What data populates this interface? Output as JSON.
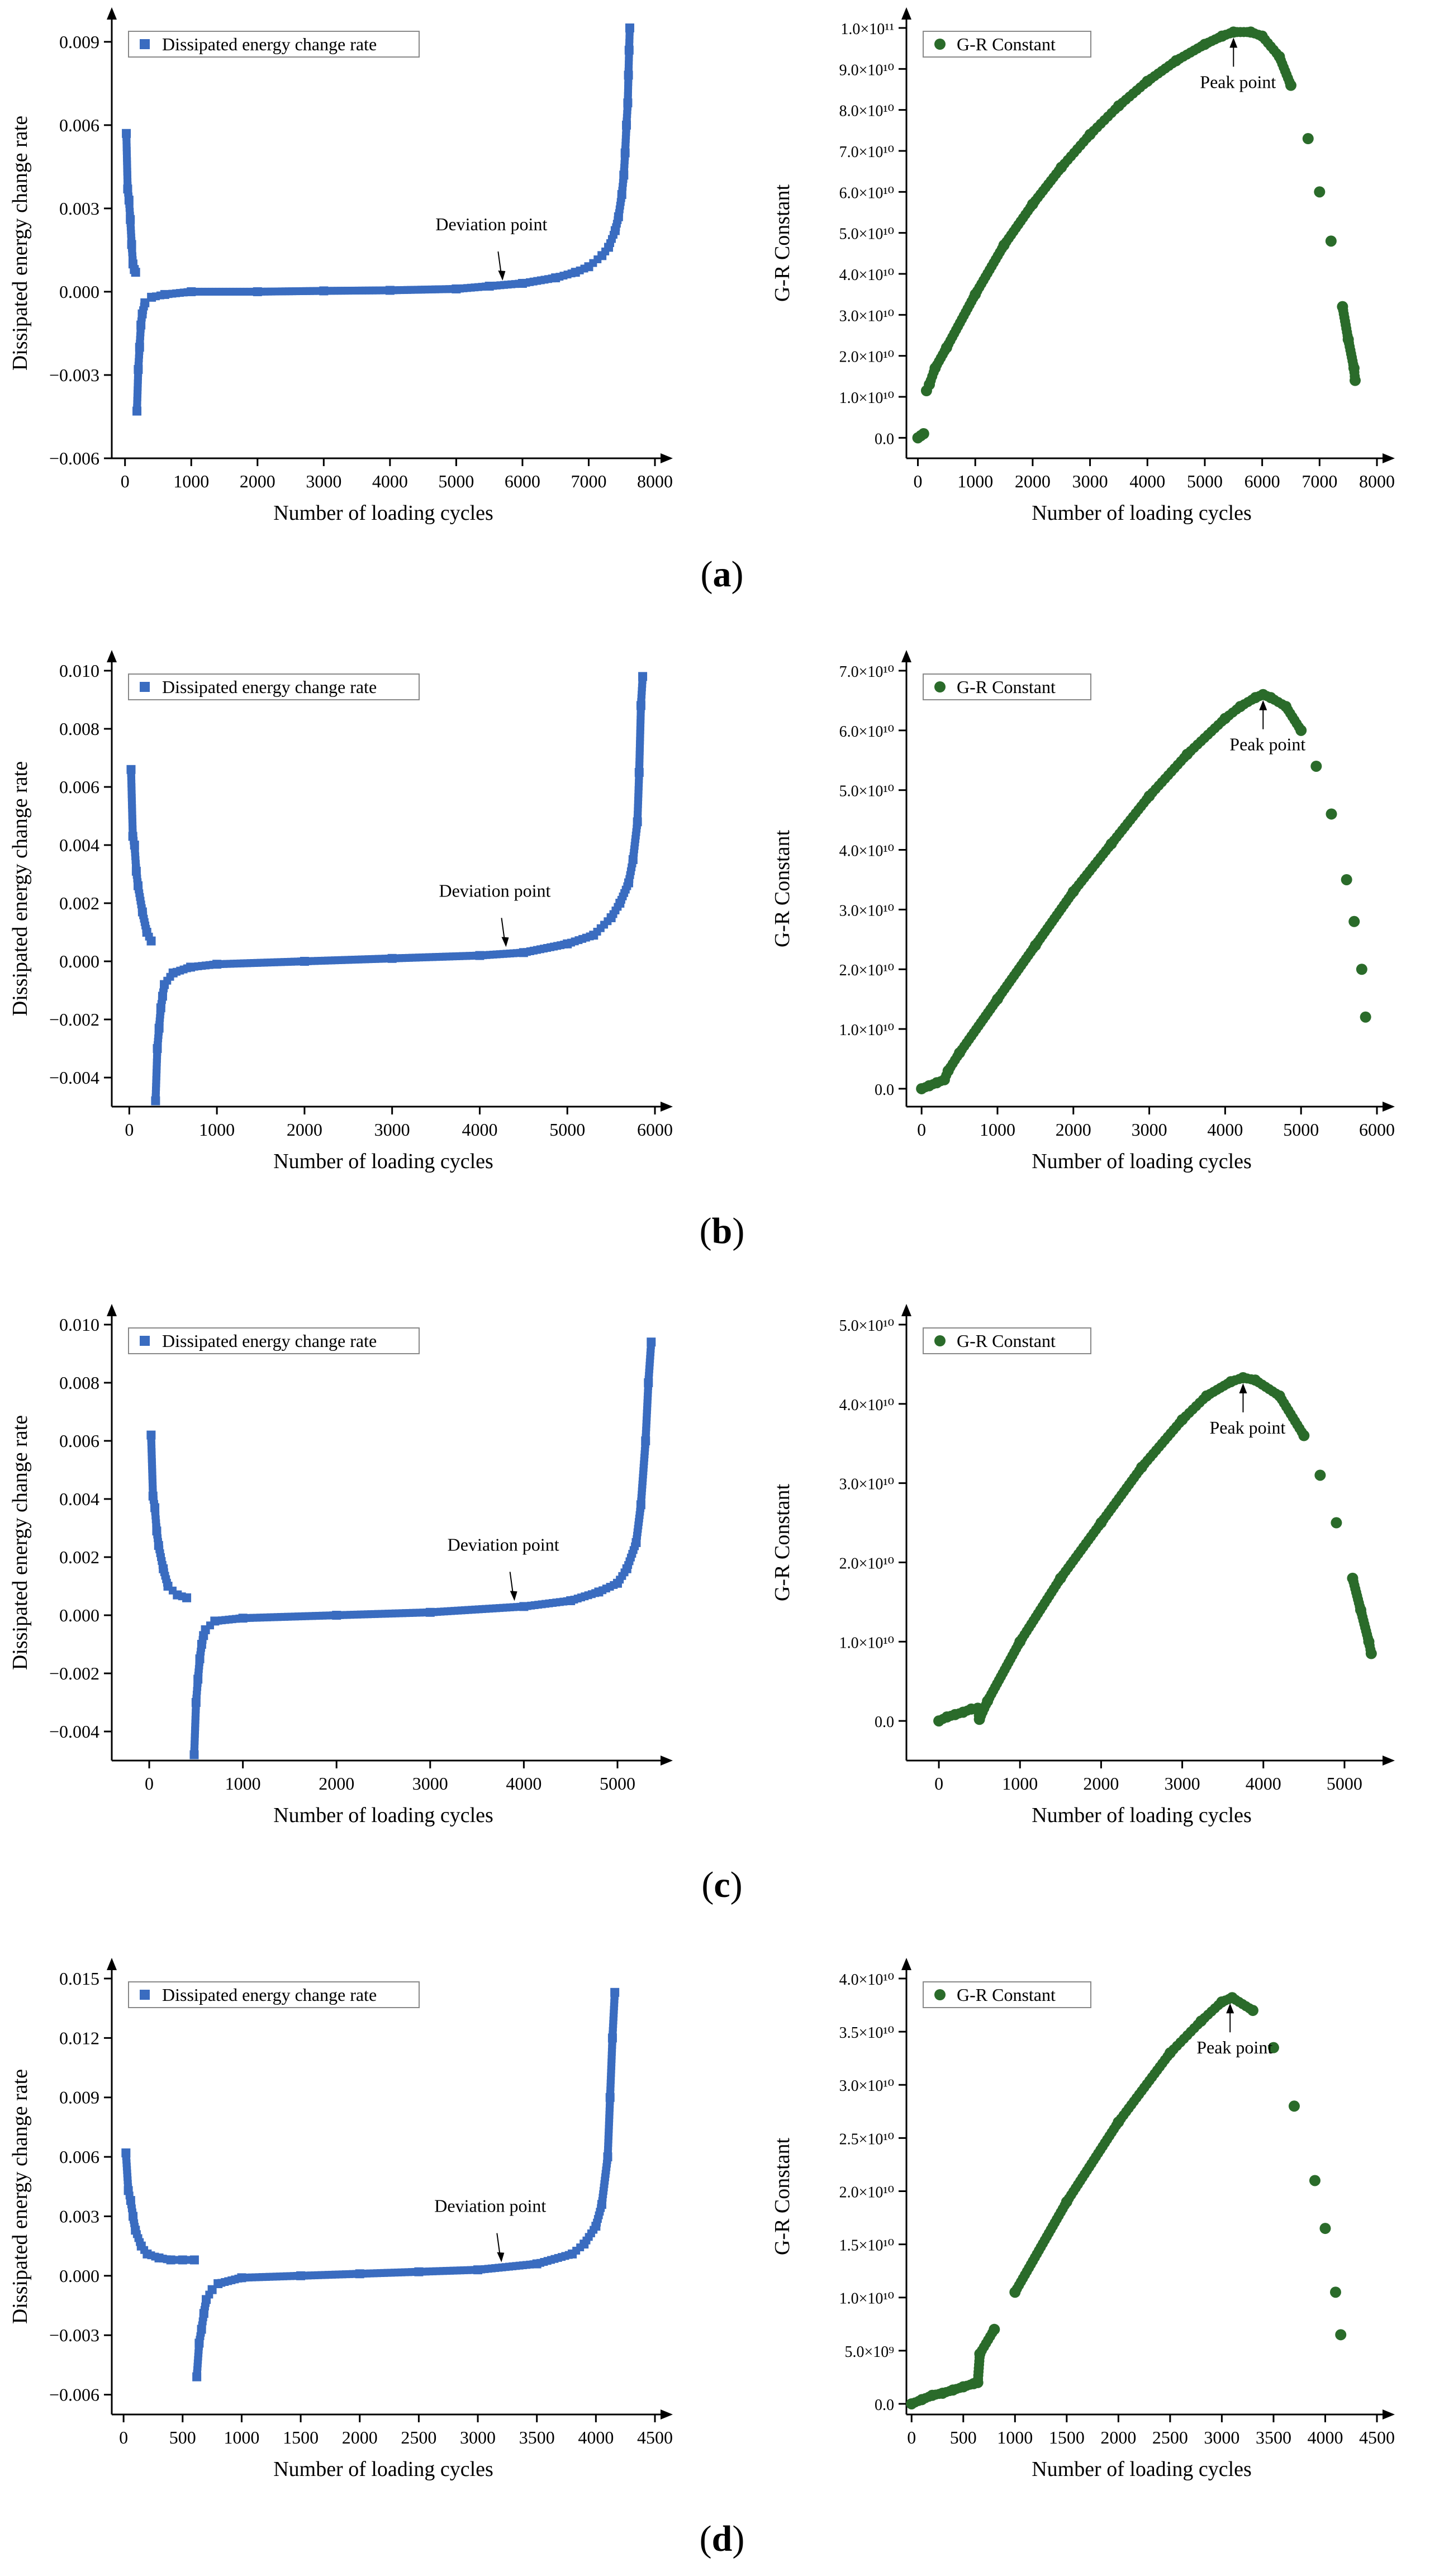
{
  "charts": [
    {
      "id": "a-left",
      "type": "scatter",
      "marker": "square",
      "color": "#3a6cc0",
      "legend": "Dissipated energy change rate",
      "xlabel": "Number of loading cycles",
      "ylabel": "Dissipated energy change rate",
      "xlim": [
        -200,
        8000
      ],
      "xticks": [
        0,
        1000,
        2000,
        3000,
        4000,
        5000,
        6000,
        7000,
        8000
      ],
      "xtick_labels": [
        "0",
        "1000",
        "2000",
        "3000",
        "4000",
        "5000",
        "6000",
        "7000",
        "8000"
      ],
      "ylim": [
        -0.006,
        0.0095
      ],
      "yticks": [
        -0.006,
        -0.003,
        0,
        0.003,
        0.006,
        0.009
      ],
      "ytick_labels": [
        "−0.006",
        "−0.003",
        "0.000",
        "0.003",
        "0.006",
        "0.009"
      ],
      "annotation": {
        "text": "Deviation point",
        "x": 5700,
        "y": 0.0002
      }
    },
    {
      "id": "a-right",
      "type": "scatter",
      "marker": "circle",
      "color": "#2a6b2a",
      "legend": "G-R Constant",
      "xlabel": "Number of loading cycles",
      "ylabel": "G-R Constant",
      "xlim": [
        -200,
        8000
      ],
      "xticks": [
        0,
        1000,
        2000,
        3000,
        4000,
        5000,
        6000,
        7000,
        8000
      ],
      "xtick_labels": [
        "0",
        "1000",
        "2000",
        "3000",
        "4000",
        "5000",
        "6000",
        "7000",
        "8000"
      ],
      "ylim": [
        -0.05,
        1.0
      ],
      "yticks": [
        0,
        0.1,
        0.2,
        0.3,
        0.4,
        0.5,
        0.6,
        0.7,
        0.8,
        0.9,
        1.0
      ],
      "ytick_labels": [
        "0.0",
        "1.0×10¹⁰",
        "2.0×10¹⁰",
        "3.0×10¹⁰",
        "4.0×10¹⁰",
        "5.0×10¹⁰",
        "6.0×10¹⁰",
        "7.0×10¹⁰",
        "8.0×10¹⁰",
        "9.0×10¹⁰",
        "1.0×10¹¹"
      ],
      "annotation": {
        "text": "Peak point",
        "x": 5500,
        "y": 0.99
      }
    },
    {
      "id": "b-left",
      "type": "scatter",
      "marker": "square",
      "color": "#3a6cc0",
      "legend": "Dissipated energy change rate",
      "xlabel": "Number of loading cycles",
      "ylabel": "Dissipated energy change rate",
      "xlim": [
        -200,
        6000
      ],
      "xticks": [
        0,
        1000,
        2000,
        3000,
        4000,
        5000,
        6000
      ],
      "xtick_labels": [
        "0",
        "1000",
        "2000",
        "3000",
        "4000",
        "5000",
        "6000"
      ],
      "ylim": [
        -0.005,
        0.01
      ],
      "yticks": [
        -0.004,
        -0.002,
        0,
        0.002,
        0.004,
        0.006,
        0.008,
        0.01
      ],
      "ytick_labels": [
        "−0.004",
        "−0.002",
        "0.000",
        "0.002",
        "0.004",
        "0.006",
        "0.008",
        "0.010"
      ],
      "annotation": {
        "text": "Deviation point",
        "x": 4300,
        "y": 0.0003
      }
    },
    {
      "id": "b-right",
      "type": "scatter",
      "marker": "circle",
      "color": "#2a6b2a",
      "legend": "G-R Constant",
      "xlabel": "Number of loading cycles",
      "ylabel": "G-R Constant",
      "xlim": [
        -200,
        6000
      ],
      "xticks": [
        0,
        1000,
        2000,
        3000,
        4000,
        5000,
        6000
      ],
      "xtick_labels": [
        "0",
        "1000",
        "2000",
        "3000",
        "4000",
        "5000",
        "6000"
      ],
      "ylim": [
        -0.3,
        7.0
      ],
      "yticks": [
        0,
        1,
        2,
        3,
        4,
        5,
        6,
        7
      ],
      "ytick_labels": [
        "0.0",
        "1.0×10¹⁰",
        "2.0×10¹⁰",
        "3.0×10¹⁰",
        "4.0×10¹⁰",
        "5.0×10¹⁰",
        "6.0×10¹⁰",
        "7.0×10¹⁰"
      ],
      "annotation": {
        "text": "Peak point",
        "x": 4500,
        "y": 6.6
      }
    },
    {
      "id": "c-left",
      "type": "scatter",
      "marker": "square",
      "color": "#3a6cc0",
      "legend": "Dissipated energy change rate",
      "xlabel": "Number of loading cycles",
      "ylabel": "Dissipated energy change rate",
      "xlim": [
        -400,
        5400
      ],
      "xticks": [
        0,
        1000,
        2000,
        3000,
        4000,
        5000
      ],
      "xtick_labels": [
        "0",
        "1000",
        "2000",
        "3000",
        "4000",
        "5000"
      ],
      "ylim": [
        -0.005,
        0.01
      ],
      "yticks": [
        -0.004,
        -0.002,
        0,
        0.002,
        0.004,
        0.006,
        0.008,
        0.01
      ],
      "ytick_labels": [
        "−0.004",
        "−0.002",
        "0.000",
        "0.002",
        "0.004",
        "0.006",
        "0.008",
        "0.010"
      ],
      "annotation": {
        "text": "Deviation point",
        "x": 3900,
        "y": 0.0003
      }
    },
    {
      "id": "c-right",
      "type": "scatter",
      "marker": "circle",
      "color": "#2a6b2a",
      "legend": "G-R Constant",
      "xlabel": "Number of loading cycles",
      "ylabel": "G-R Constant",
      "xlim": [
        -400,
        5400
      ],
      "xticks": [
        0,
        1000,
        2000,
        3000,
        4000,
        5000
      ],
      "xtick_labels": [
        "0",
        "1000",
        "2000",
        "3000",
        "4000",
        "5000"
      ],
      "ylim": [
        -0.5,
        5.0
      ],
      "yticks": [
        0,
        1,
        2,
        3,
        4,
        5
      ],
      "ytick_labels": [
        "0.0",
        "1.0×10¹⁰",
        "2.0×10¹⁰",
        "3.0×10¹⁰",
        "4.0×10¹⁰",
        "5.0×10¹⁰"
      ],
      "annotation": {
        "text": "Peak point",
        "x": 3750,
        "y": 4.33
      }
    },
    {
      "id": "d-left",
      "type": "scatter",
      "marker": "square",
      "color": "#3a6cc0",
      "legend": "Dissipated energy change rate",
      "xlabel": "Number of loading cycles",
      "ylabel": "Dissipated energy change rate",
      "xlim": [
        -100,
        4500
      ],
      "xticks": [
        0,
        500,
        1000,
        1500,
        2000,
        2500,
        3000,
        3500,
        4000,
        4500
      ],
      "xtick_labels": [
        "0",
        "500",
        "1000",
        "1500",
        "2000",
        "2500",
        "3000",
        "3500",
        "4000",
        "4500"
      ],
      "ylim": [
        -0.007,
        0.015
      ],
      "yticks": [
        -0.006,
        -0.003,
        0,
        0.003,
        0.006,
        0.009,
        0.012,
        0.015
      ],
      "ytick_labels": [
        "−0.006",
        "−0.003",
        "0.000",
        "0.003",
        "0.006",
        "0.009",
        "0.012",
        "0.015"
      ],
      "annotation": {
        "text": "Deviation point",
        "x": 3200,
        "y": 0.0004
      }
    },
    {
      "id": "d-right",
      "type": "scatter",
      "marker": "circle",
      "color": "#2a6b2a",
      "legend": "G-R Constant",
      "xlabel": "Number of loading cycles",
      "ylabel": "G-R Constant",
      "xlim": [
        -50,
        4500
      ],
      "xticks": [
        0,
        500,
        1000,
        1500,
        2000,
        2500,
        3000,
        3500,
        4000,
        4500
      ],
      "xtick_labels": [
        "0",
        "500",
        "1000",
        "1500",
        "2000",
        "2500",
        "3000",
        "3500",
        "4000",
        "4500"
      ],
      "ylim": [
        -0.1,
        4.0
      ],
      "yticks": [
        0,
        0.5,
        1,
        1.5,
        2,
        2.5,
        3,
        3.5,
        4
      ],
      "ytick_labels": [
        "0.0",
        "5.0×10⁹",
        "1.0×10¹⁰",
        "1.5×10¹⁰",
        "2.0×10¹⁰",
        "2.5×10¹⁰",
        "3.0×10¹⁰",
        "3.5×10¹⁰",
        "4.0×10¹⁰"
      ],
      "annotation": {
        "text": "Peak point",
        "x": 3080,
        "y": 3.82
      }
    }
  ],
  "chart_data": [
    {
      "type": "scatter",
      "panel": "a",
      "side": "left",
      "series": [
        {
          "name": "Dissipated energy change rate",
          "x": [
            20,
            40,
            60,
            80,
            100,
            120,
            140,
            160,
            180,
            200,
            220,
            240,
            260,
            300,
            400,
            600,
            1000,
            2000,
            3000,
            4000,
            5000,
            5500,
            6000,
            6500,
            6800,
            7000,
            7200,
            7300,
            7400,
            7450,
            7500,
            7530,
            7550,
            7570,
            7590,
            7600,
            7610,
            7620
          ],
          "y": [
            0.0057,
            0.0037,
            0.0033,
            0.0026,
            0.0017,
            0.001,
            0.0008,
            0.0007,
            -0.0043,
            -0.0028,
            -0.002,
            -0.0012,
            -0.0008,
            -0.0004,
            -0.0002,
            -0.0001,
            0.0,
            0.0,
            3e-05,
            5e-05,
            0.0001,
            0.0002,
            0.0003,
            0.0005,
            0.0007,
            0.0009,
            0.0013,
            0.0016,
            0.0022,
            0.0027,
            0.0035,
            0.0042,
            0.005,
            0.006,
            0.0068,
            0.0078,
            0.0087,
            0.0095
          ]
        }
      ]
    },
    {
      "type": "scatter",
      "panel": "a",
      "side": "right",
      "y_unit": "×10¹¹",
      "series": [
        {
          "name": "G-R Constant",
          "x": [
            0,
            50,
            100,
            150,
            200,
            300,
            500,
            1000,
            1500,
            2000,
            2500,
            3000,
            3500,
            4000,
            4500,
            5000,
            5300,
            5500,
            5800,
            6000,
            6300,
            6500,
            6800,
            7000,
            7200,
            7400,
            7500,
            7600,
            7620
          ],
          "y": [
            0.0,
            0.005,
            0.01,
            0.115,
            0.13,
            0.17,
            0.22,
            0.35,
            0.47,
            0.57,
            0.66,
            0.74,
            0.81,
            0.87,
            0.92,
            0.96,
            0.98,
            0.99,
            0.99,
            0.98,
            0.93,
            0.86,
            0.73,
            0.6,
            0.48,
            0.32,
            0.24,
            0.17,
            0.14
          ]
        }
      ]
    },
    {
      "type": "scatter",
      "panel": "b",
      "side": "left",
      "series": [
        {
          "name": "Dissipated energy change rate",
          "x": [
            20,
            40,
            60,
            80,
            100,
            150,
            200,
            250,
            300,
            320,
            340,
            360,
            380,
            400,
            500,
            700,
            1000,
            2000,
            3000,
            4000,
            4500,
            5000,
            5300,
            5500,
            5600,
            5700,
            5750,
            5800,
            5820,
            5840,
            5860
          ],
          "y": [
            0.0066,
            0.0043,
            0.004,
            0.0031,
            0.0026,
            0.0017,
            0.001,
            0.0007,
            -0.0048,
            -0.003,
            -0.0023,
            -0.0016,
            -0.0012,
            -0.0008,
            -0.0004,
            -0.0002,
            -0.0001,
            0.0,
            0.0001,
            0.0002,
            0.0003,
            0.0006,
            0.0009,
            0.0015,
            0.002,
            0.0027,
            0.0035,
            0.0048,
            0.0065,
            0.0088,
            0.0098
          ]
        }
      ]
    },
    {
      "type": "scatter",
      "panel": "b",
      "side": "right",
      "y_unit": "×10¹⁰",
      "series": [
        {
          "name": "G-R Constant",
          "x": [
            0,
            100,
            200,
            300,
            350,
            500,
            1000,
            1500,
            2000,
            2500,
            3000,
            3500,
            4000,
            4200,
            4400,
            4500,
            4600,
            4800,
            5000,
            5200,
            5400,
            5600,
            5700,
            5800,
            5850
          ],
          "y": [
            0.0,
            0.05,
            0.1,
            0.15,
            0.3,
            0.6,
            1.5,
            2.4,
            3.3,
            4.1,
            4.9,
            5.6,
            6.2,
            6.4,
            6.55,
            6.6,
            6.55,
            6.4,
            6.0,
            5.4,
            4.6,
            3.5,
            2.8,
            2.0,
            1.2
          ]
        }
      ]
    },
    {
      "type": "scatter",
      "panel": "c",
      "side": "left",
      "series": [
        {
          "name": "Dissipated energy change rate",
          "x": [
            20,
            40,
            60,
            80,
            100,
            150,
            200,
            300,
            400,
            480,
            500,
            520,
            540,
            560,
            580,
            600,
            700,
            1000,
            2000,
            3000,
            4000,
            4500,
            4800,
            5000,
            5100,
            5200,
            5250,
            5300,
            5330,
            5360
          ],
          "y": [
            0.0062,
            0.0041,
            0.0037,
            0.0029,
            0.0024,
            0.0016,
            0.001,
            0.0007,
            0.0006,
            -0.0048,
            -0.003,
            -0.0022,
            -0.0015,
            -0.001,
            -0.0007,
            -0.0005,
            -0.0002,
            -0.0001,
            0.0,
            0.0001,
            0.0003,
            0.0005,
            0.0008,
            0.0011,
            0.0016,
            0.0025,
            0.0038,
            0.006,
            0.008,
            0.0094
          ]
        }
      ]
    },
    {
      "type": "scatter",
      "panel": "c",
      "side": "right",
      "y_unit": "×10¹⁰",
      "series": [
        {
          "name": "G-R Constant",
          "x": [
            0,
            100,
            200,
            300,
            400,
            480,
            500,
            600,
            1000,
            1500,
            2000,
            2500,
            3000,
            3300,
            3600,
            3750,
            3900,
            4200,
            4500,
            4700,
            4900,
            5100,
            5200,
            5300,
            5330
          ],
          "y": [
            0.0,
            0.05,
            0.08,
            0.11,
            0.15,
            0.16,
            0.02,
            0.25,
            1.0,
            1.8,
            2.5,
            3.2,
            3.8,
            4.1,
            4.28,
            4.33,
            4.3,
            4.1,
            3.6,
            3.1,
            2.5,
            1.8,
            1.4,
            1.0,
            0.85
          ]
        }
      ]
    },
    {
      "type": "scatter",
      "panel": "d",
      "side": "left",
      "series": [
        {
          "name": "Dissipated energy change rate",
          "x": [
            20,
            40,
            60,
            80,
            100,
            150,
            200,
            300,
            400,
            500,
            600,
            620,
            640,
            660,
            680,
            700,
            750,
            800,
            1000,
            1500,
            2000,
            2500,
            3000,
            3500,
            3800,
            3900,
            4000,
            4050,
            4100,
            4120,
            4140,
            4160
          ],
          "y": [
            0.0062,
            0.0043,
            0.0038,
            0.003,
            0.0023,
            0.0015,
            0.0011,
            0.0009,
            0.0008,
            0.0008,
            0.0008,
            -0.0051,
            -0.0034,
            -0.0027,
            -0.0019,
            -0.0012,
            -0.0007,
            -0.0004,
            -0.0001,
            0.0,
            0.0001,
            0.0002,
            0.0003,
            0.0006,
            0.0011,
            0.0016,
            0.0025,
            0.0036,
            0.006,
            0.009,
            0.012,
            0.0143
          ]
        }
      ]
    },
    {
      "type": "scatter",
      "panel": "d",
      "side": "right",
      "y_unit": "×10¹⁰",
      "series": [
        {
          "name": "G-R Constant",
          "x": [
            0,
            100,
            200,
            300,
            400,
            500,
            600,
            640,
            660,
            800,
            1000,
            1500,
            2000,
            2500,
            2800,
            3000,
            3100,
            3300,
            3500,
            3700,
            3900,
            4000,
            4100,
            4150
          ],
          "y": [
            0.0,
            0.04,
            0.08,
            0.1,
            0.13,
            0.16,
            0.19,
            0.2,
            0.47,
            0.7,
            1.05,
            1.9,
            2.65,
            3.3,
            3.6,
            3.78,
            3.82,
            3.7,
            3.35,
            2.8,
            2.1,
            1.65,
            1.05,
            0.65
          ]
        }
      ]
    }
  ],
  "captions": {
    "a": "a",
    "b": "b",
    "c": "c",
    "d": "d"
  }
}
